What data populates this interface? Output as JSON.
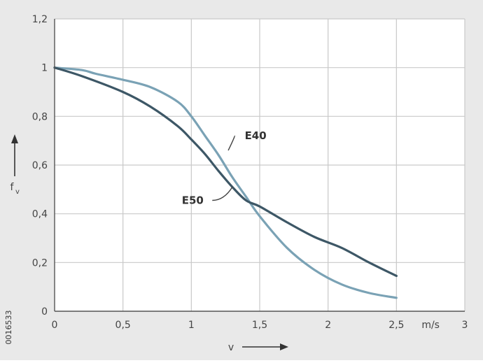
{
  "chart_data": {
    "type": "line",
    "title": "",
    "xlabel": "v",
    "ylabel": "f",
    "ylabel_subscript": "v",
    "xlim": [
      0,
      3
    ],
    "ylim": [
      0,
      1.2
    ],
    "x_ticks": [
      0,
      0.5,
      1,
      1.5,
      2,
      2.5,
      3
    ],
    "x_tick_labels": [
      "0",
      "0,5",
      "1",
      "1,5",
      "2",
      "2,5",
      "3"
    ],
    "x_unit": "m/s",
    "y_ticks": [
      0,
      0.2,
      0.4,
      0.6,
      0.8,
      1.0,
      1.2
    ],
    "y_tick_labels": [
      "0",
      "0,2",
      "0,4",
      "0,6",
      "0,8",
      "1",
      "1,2"
    ],
    "grid": true,
    "series": [
      {
        "name": "E40",
        "color": "#7aa2b5",
        "x": [
          0,
          0.2,
          0.3,
          0.5,
          0.7,
          0.9,
          1.0,
          1.1,
          1.2,
          1.3,
          1.4,
          1.5,
          1.7,
          1.9,
          2.1,
          2.3,
          2.5
        ],
        "y": [
          1.0,
          0.99,
          0.975,
          0.95,
          0.92,
          0.86,
          0.8,
          0.72,
          0.64,
          0.55,
          0.47,
          0.39,
          0.26,
          0.17,
          0.11,
          0.075,
          0.055
        ]
      },
      {
        "name": "E50",
        "color": "#3d5766",
        "x": [
          0,
          0.2,
          0.5,
          0.7,
          0.9,
          1.0,
          1.1,
          1.2,
          1.3,
          1.4,
          1.5,
          1.7,
          1.9,
          2.1,
          2.3,
          2.5
        ],
        "y": [
          1.0,
          0.965,
          0.9,
          0.84,
          0.76,
          0.705,
          0.645,
          0.575,
          0.51,
          0.455,
          0.43,
          0.365,
          0.305,
          0.26,
          0.2,
          0.145
        ]
      }
    ],
    "annotations": [
      {
        "series": "E40",
        "text": "E40"
      },
      {
        "series": "E50",
        "text": "E50"
      }
    ]
  },
  "figure_id": "0016533"
}
